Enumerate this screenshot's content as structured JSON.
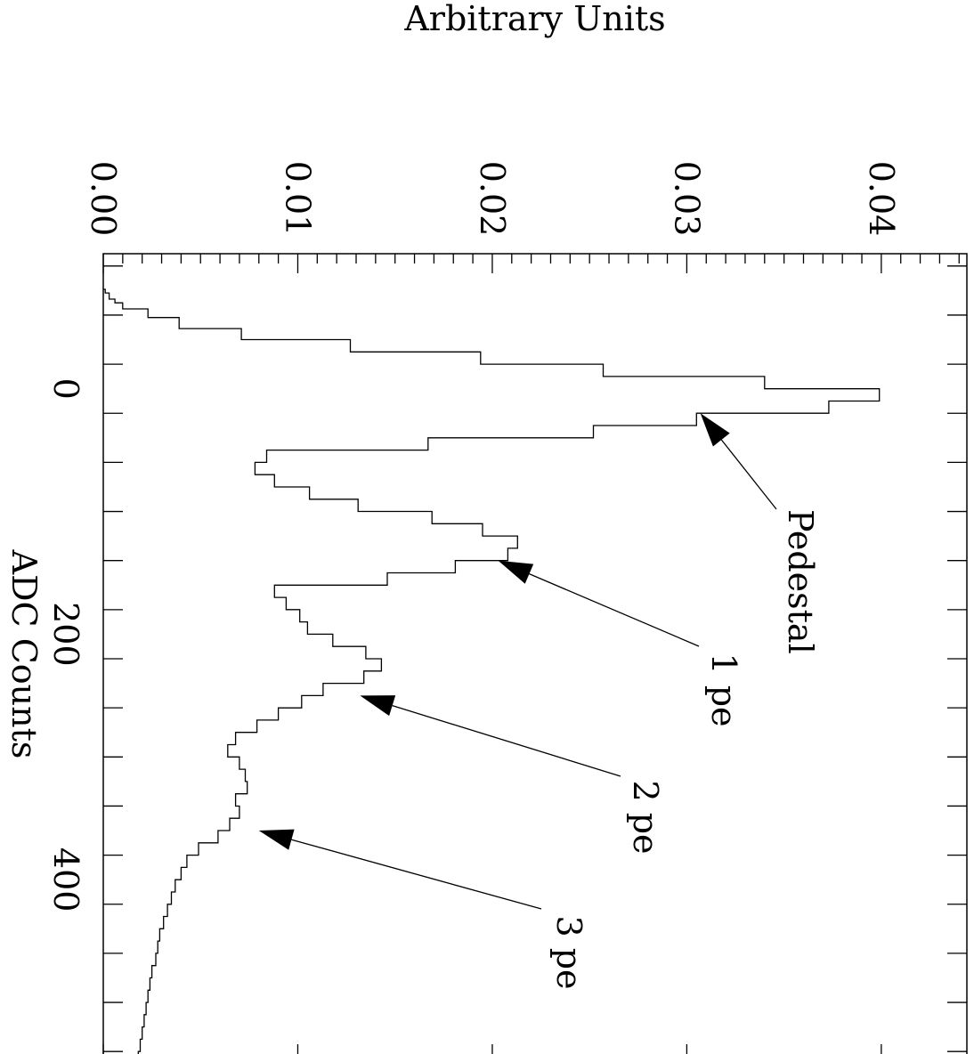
{
  "chart_data": {
    "type": "histogram",
    "title": "",
    "xlabel": "ADC Counts",
    "ylabel": "Arbitrary Units",
    "xlim": [
      -110,
      550
    ],
    "ylim": [
      0,
      0.0444
    ],
    "x_ticks": [
      "0",
      "200",
      "400"
    ],
    "y_ticks": [
      "0.00",
      "0.01",
      "0.02",
      "0.03",
      "0.04"
    ],
    "x_tick_values": [
      0,
      200,
      400
    ],
    "y_tick_values": [
      0,
      0.01,
      0.02,
      0.03,
      0.04
    ],
    "grid": false,
    "legend": "none",
    "orientation": "rotated 90 degrees clockwise",
    "line_color": "#000000",
    "bin_edges": [
      -81,
      -78,
      -73,
      -70,
      -65,
      -58,
      -49,
      -40,
      -30,
      -20,
      -10,
      0,
      10,
      20,
      30,
      40,
      50,
      60,
      70,
      80,
      90,
      100,
      110,
      120,
      130,
      140,
      150,
      160,
      170,
      180,
      190,
      200,
      210,
      220,
      230,
      240,
      250,
      260,
      270,
      280,
      290,
      300,
      310,
      320,
      330,
      340,
      350,
      360,
      370,
      380,
      390,
      400,
      410,
      420,
      430,
      440,
      450,
      460,
      470,
      480,
      490,
      500,
      510,
      520,
      530,
      540,
      550
    ],
    "values": [
      0.0001,
      0.0003,
      0.0006,
      0.001,
      0.0023,
      0.0039,
      0.0071,
      0.0127,
      0.0194,
      0.0257,
      0.034,
      0.0399,
      0.0373,
      0.0305,
      0.0252,
      0.0167,
      0.0084,
      0.0078,
      0.0088,
      0.0106,
      0.0131,
      0.0169,
      0.0195,
      0.0213,
      0.0208,
      0.0181,
      0.0146,
      0.0088,
      0.0094,
      0.0101,
      0.0105,
      0.0118,
      0.0135,
      0.0143,
      0.0134,
      0.0113,
      0.0102,
      0.009,
      0.0079,
      0.0068,
      0.0064,
      0.007,
      0.0073,
      0.0074,
      0.0068,
      0.007,
      0.0065,
      0.0059,
      0.0049,
      0.0043,
      0.004,
      0.0037,
      0.0035,
      0.0033,
      0.0031,
      0.0029,
      0.0028,
      0.0027,
      0.0025,
      0.0024,
      0.0023,
      0.0022,
      0.0021,
      0.002,
      0.0019,
      0.0018
    ],
    "annotations": [
      {
        "text": "Pedestal",
        "x": 20,
        "y": 0.0307
      },
      {
        "text": "1 pe",
        "x": 140,
        "y": 0.0203
      },
      {
        "text": "2 pe",
        "x": 250,
        "y": 0.0132
      },
      {
        "text": "3 pe",
        "x": 360,
        "y": 0.008
      }
    ]
  }
}
